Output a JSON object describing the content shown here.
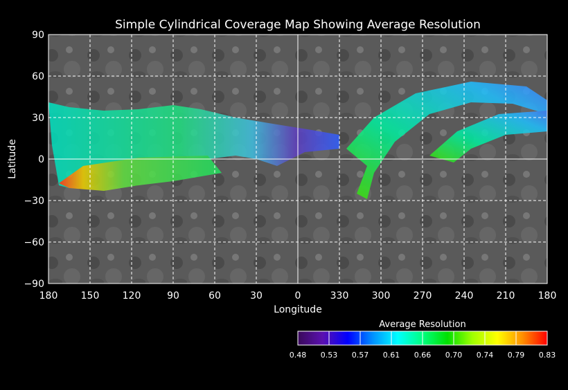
{
  "chart_data": {
    "type": "heatmap",
    "title": "Simple Cylindrical Coverage Map Showing Average Resolution",
    "xlabel": "Longitude",
    "ylabel": "Latitude",
    "x_ticks": [
      "180",
      "150",
      "120",
      "90",
      "60",
      "30",
      "0",
      "330",
      "300",
      "270",
      "240",
      "210",
      "180"
    ],
    "y_ticks": [
      "90",
      "60",
      "30",
      "0",
      "−30",
      "−60",
      "−90"
    ],
    "ylim": [
      -90,
      90
    ],
    "grid": true,
    "colorbar": {
      "title": "Average Resolution",
      "ticks": [
        "0.48",
        "0.53",
        "0.57",
        "0.61",
        "0.66",
        "0.70",
        "0.74",
        "0.79",
        "0.83"
      ],
      "range": [
        0.48,
        0.83
      ],
      "colors": [
        "#3a0a5a",
        "#5a10b0",
        "#0000ff",
        "#0090ff",
        "#00ffff",
        "#00ff80",
        "#00e000",
        "#a0ff00",
        "#ffff00",
        "#ff9000",
        "#ff0000"
      ]
    }
  }
}
